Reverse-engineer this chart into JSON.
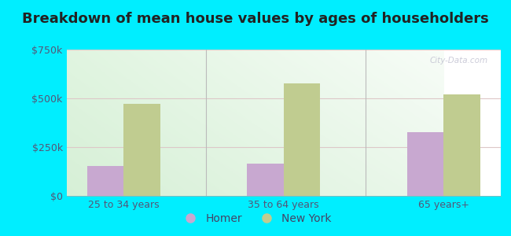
{
  "title": "Breakdown of mean house values by ages of householders",
  "categories": [
    "25 to 34 years",
    "35 to 64 years",
    "65 years+"
  ],
  "homer_values": [
    155000,
    165000,
    325000
  ],
  "newyork_values": [
    470000,
    575000,
    520000
  ],
  "homer_color": "#c8a8d0",
  "newyork_color": "#c0cc90",
  "ylim": [
    0,
    750000
  ],
  "yticks": [
    0,
    250000,
    500000,
    750000
  ],
  "ytick_labels": [
    "$0",
    "$250k",
    "$500k",
    "$750k"
  ],
  "background_outer": "#00eeff",
  "legend_homer": "Homer",
  "legend_newyork": "New York",
  "bar_width": 0.32,
  "watermark": "City-Data.com",
  "title_fontsize": 13,
  "tick_fontsize": 9,
  "legend_fontsize": 10,
  "grid_color": "#ddcccc",
  "separator_color": "#bbbbbb",
  "tick_color": "#555577"
}
